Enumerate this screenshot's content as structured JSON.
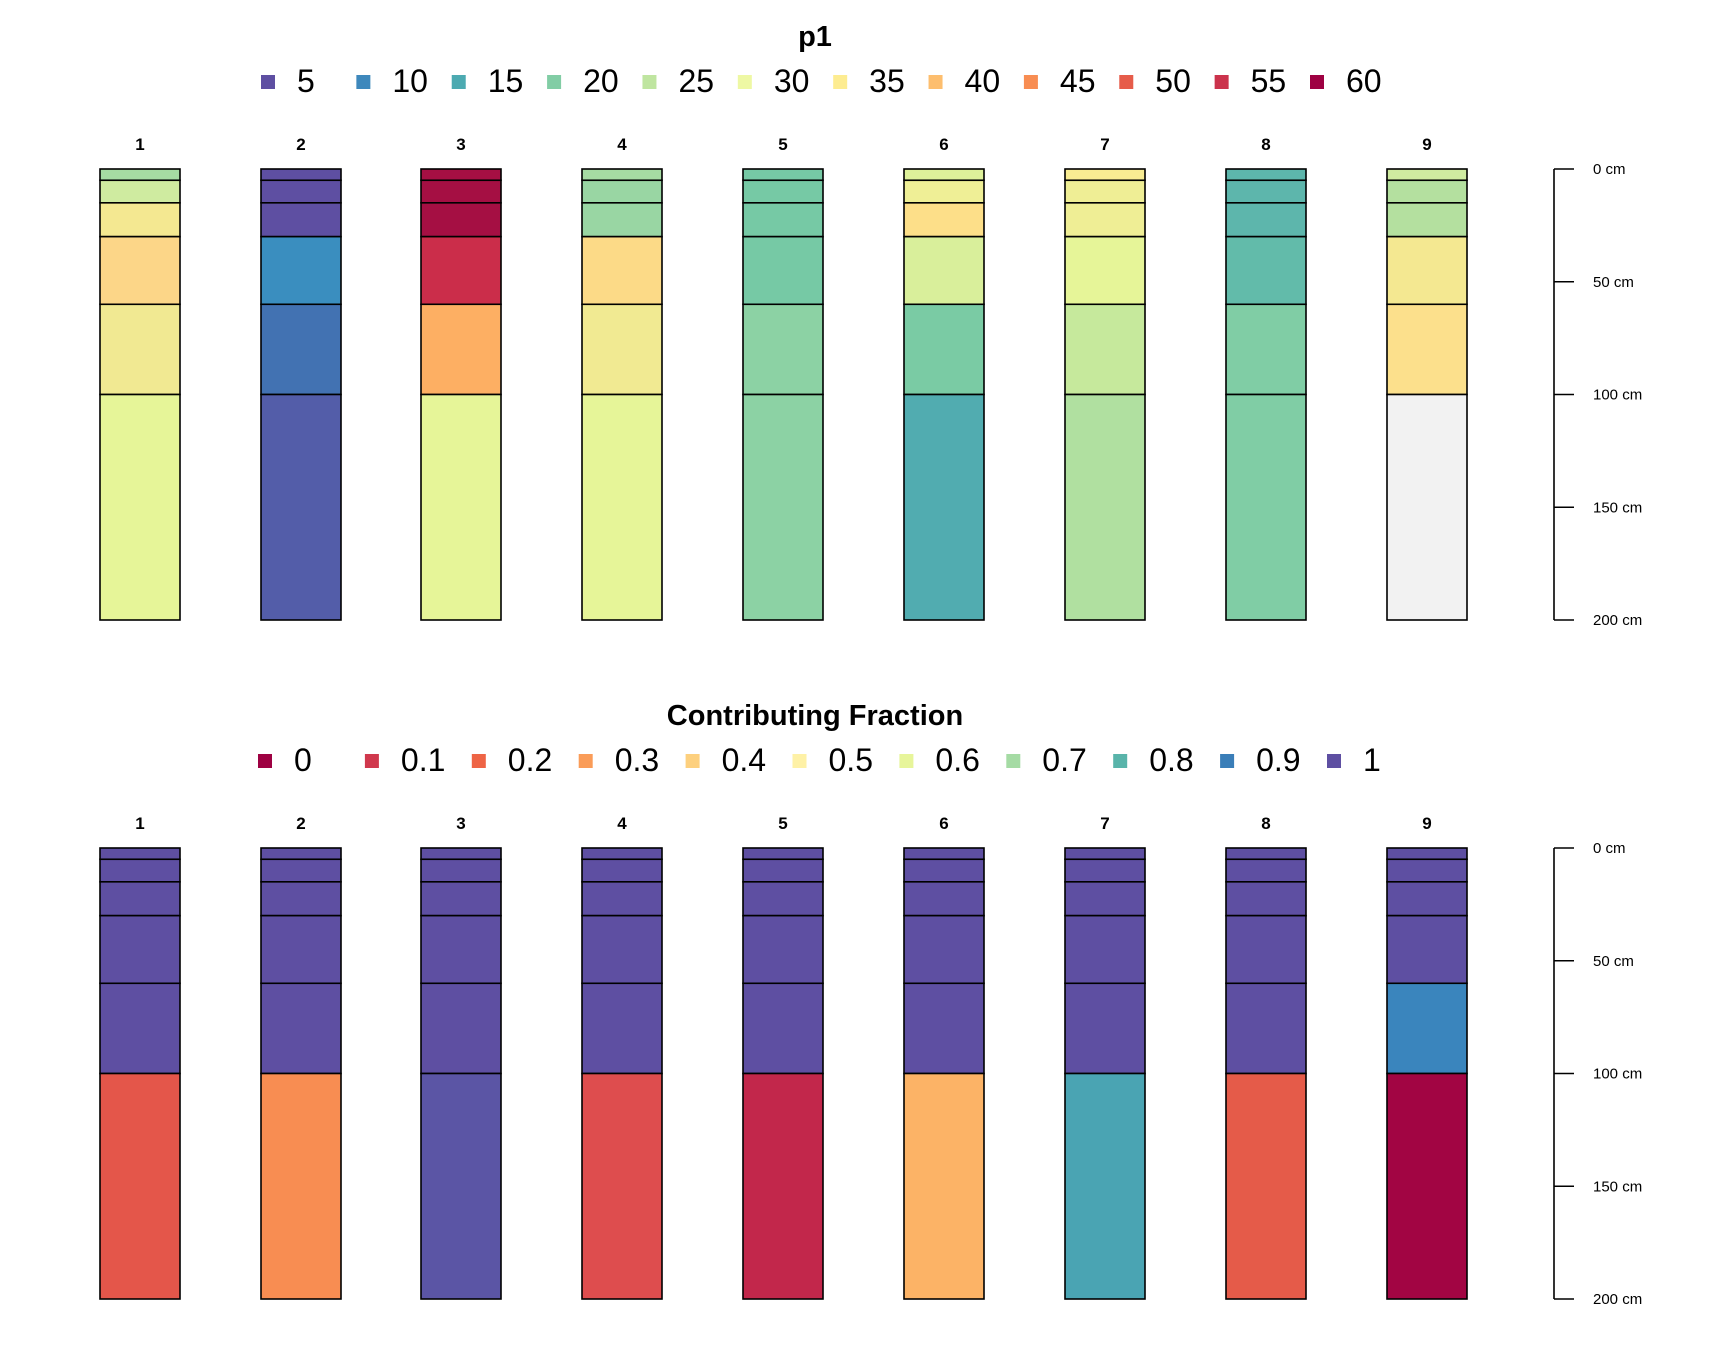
{
  "chart_data": [
    {
      "type": "bar",
      "subtype": "soil-profile-stacked-columns",
      "title": "p1",
      "legend": {
        "position": "top",
        "entries": [
          {
            "label": "5",
            "color": "#5E4FA2"
          },
          {
            "label": "10",
            "color": "#3E88BC"
          },
          {
            "label": "15",
            "color": "#4CAAB1"
          },
          {
            "label": "20",
            "color": "#82CDA5"
          },
          {
            "label": "25",
            "color": "#BFE5A0"
          },
          {
            "label": "30",
            "color": "#EEF8A4"
          },
          {
            "label": "35",
            "color": "#FDEC91"
          },
          {
            "label": "40",
            "color": "#FDBE6E"
          },
          {
            "label": "45",
            "color": "#F88D52"
          },
          {
            "label": "50",
            "color": "#E65C4A"
          },
          {
            "label": "55",
            "color": "#CB334C"
          },
          {
            "label": "60",
            "color": "#9E0142"
          }
        ]
      },
      "depth_axis": {
        "ylim": [
          0,
          200
        ],
        "ticks": [
          {
            "value": 0,
            "label": "0 cm"
          },
          {
            "value": 50,
            "label": "50 cm"
          },
          {
            "value": 100,
            "label": "100 cm"
          },
          {
            "value": 150,
            "label": "150 cm"
          },
          {
            "value": 200,
            "label": "200 cm"
          }
        ]
      },
      "profiles": [
        {
          "id": "1",
          "horizons": [
            {
              "top": 0,
              "bottom": 5,
              "color": "#A6DBA3"
            },
            {
              "top": 5,
              "bottom": 15,
              "color": "#CFEBA0"
            },
            {
              "top": 15,
              "bottom": 30,
              "color": "#F4E891"
            },
            {
              "top": 30,
              "bottom": 60,
              "color": "#FCD688"
            },
            {
              "top": 60,
              "bottom": 100,
              "color": "#F1E992"
            },
            {
              "top": 100,
              "bottom": 200,
              "color": "#E6F598"
            }
          ]
        },
        {
          "id": "2",
          "horizons": [
            {
              "top": 0,
              "bottom": 5,
              "color": "#5E4FA2"
            },
            {
              "top": 5,
              "bottom": 15,
              "color": "#5E4FA2"
            },
            {
              "top": 15,
              "bottom": 30,
              "color": "#5E4FA2"
            },
            {
              "top": 30,
              "bottom": 60,
              "color": "#3A8EBF"
            },
            {
              "top": 60,
              "bottom": 100,
              "color": "#4272B2"
            },
            {
              "top": 100,
              "bottom": 200,
              "color": "#535DA9"
            }
          ]
        },
        {
          "id": "3",
          "horizons": [
            {
              "top": 0,
              "bottom": 5,
              "color": "#A50F43"
            },
            {
              "top": 5,
              "bottom": 15,
              "color": "#A50F43"
            },
            {
              "top": 15,
              "bottom": 30,
              "color": "#A50F43"
            },
            {
              "top": 30,
              "bottom": 60,
              "color": "#CB2D4A"
            },
            {
              "top": 60,
              "bottom": 100,
              "color": "#FDAF63"
            },
            {
              "top": 100,
              "bottom": 200,
              "color": "#E6F598"
            }
          ]
        },
        {
          "id": "4",
          "horizons": [
            {
              "top": 0,
              "bottom": 5,
              "color": "#A6DBA3"
            },
            {
              "top": 5,
              "bottom": 15,
              "color": "#99D6A3"
            },
            {
              "top": 15,
              "bottom": 30,
              "color": "#99D6A3"
            },
            {
              "top": 30,
              "bottom": 60,
              "color": "#FCDA87"
            },
            {
              "top": 60,
              "bottom": 100,
              "color": "#F1EA92"
            },
            {
              "top": 100,
              "bottom": 200,
              "color": "#E6F598"
            }
          ]
        },
        {
          "id": "5",
          "horizons": [
            {
              "top": 0,
              "bottom": 5,
              "color": "#76C9A5"
            },
            {
              "top": 5,
              "bottom": 15,
              "color": "#76C9A5"
            },
            {
              "top": 15,
              "bottom": 30,
              "color": "#76C9A5"
            },
            {
              "top": 30,
              "bottom": 60,
              "color": "#76C9A5"
            },
            {
              "top": 60,
              "bottom": 100,
              "color": "#8CD2A4"
            },
            {
              "top": 100,
              "bottom": 200,
              "color": "#8CD2A4"
            }
          ]
        },
        {
          "id": "6",
          "horizons": [
            {
              "top": 0,
              "bottom": 5,
              "color": "#DEF19A"
            },
            {
              "top": 5,
              "bottom": 15,
              "color": "#EFEF96"
            },
            {
              "top": 15,
              "bottom": 30,
              "color": "#FDDF89"
            },
            {
              "top": 30,
              "bottom": 60,
              "color": "#D9EF9B"
            },
            {
              "top": 60,
              "bottom": 100,
              "color": "#7ACBA4"
            },
            {
              "top": 100,
              "bottom": 200,
              "color": "#51ACB0"
            }
          ]
        },
        {
          "id": "7",
          "horizons": [
            {
              "top": 0,
              "bottom": 5,
              "color": "#F8EC92"
            },
            {
              "top": 5,
              "bottom": 15,
              "color": "#EFEE95"
            },
            {
              "top": 15,
              "bottom": 30,
              "color": "#EFEE95"
            },
            {
              "top": 30,
              "bottom": 60,
              "color": "#E6F598"
            },
            {
              "top": 60,
              "bottom": 100,
              "color": "#C6E99C"
            },
            {
              "top": 100,
              "bottom": 200,
              "color": "#B0E0A0"
            }
          ]
        },
        {
          "id": "8",
          "horizons": [
            {
              "top": 0,
              "bottom": 5,
              "color": "#5DB6AC"
            },
            {
              "top": 5,
              "bottom": 15,
              "color": "#5DB6AC"
            },
            {
              "top": 15,
              "bottom": 30,
              "color": "#5DB6AC"
            },
            {
              "top": 30,
              "bottom": 60,
              "color": "#62BBAA"
            },
            {
              "top": 60,
              "bottom": 100,
              "color": "#80CDA5"
            },
            {
              "top": 100,
              "bottom": 200,
              "color": "#80CDA5"
            }
          ]
        },
        {
          "id": "9",
          "horizons": [
            {
              "top": 0,
              "bottom": 5,
              "color": "#CFEBA0"
            },
            {
              "top": 5,
              "bottom": 15,
              "color": "#B4E09F"
            },
            {
              "top": 15,
              "bottom": 30,
              "color": "#B4E09F"
            },
            {
              "top": 30,
              "bottom": 60,
              "color": "#F4E891"
            },
            {
              "top": 60,
              "bottom": 100,
              "color": "#FCE08C"
            },
            {
              "top": 100,
              "bottom": 200,
              "color": "#F2F2F2"
            }
          ]
        }
      ]
    },
    {
      "type": "bar",
      "subtype": "soil-profile-stacked-columns",
      "title": "Contributing Fraction",
      "legend": {
        "position": "top",
        "entries": [
          {
            "label": "0",
            "color": "#9E0142"
          },
          {
            "label": "0.1",
            "color": "#D0384D"
          },
          {
            "label": "0.2",
            "color": "#EE6445"
          },
          {
            "label": "0.3",
            "color": "#FA9C58"
          },
          {
            "label": "0.4",
            "color": "#FDD07E"
          },
          {
            "label": "0.5",
            "color": "#FEF1A6"
          },
          {
            "label": "0.6",
            "color": "#E7F59A"
          },
          {
            "label": "0.7",
            "color": "#A5DBA4"
          },
          {
            "label": "0.8",
            "color": "#59B4AA"
          },
          {
            "label": "0.9",
            "color": "#3A7EB8"
          },
          {
            "label": "1",
            "color": "#5E4FA2"
          }
        ]
      },
      "depth_axis": {
        "ylim": [
          0,
          200
        ],
        "ticks": [
          {
            "value": 0,
            "label": "0 cm"
          },
          {
            "value": 50,
            "label": "50 cm"
          },
          {
            "value": 100,
            "label": "100 cm"
          },
          {
            "value": 150,
            "label": "150 cm"
          },
          {
            "value": 200,
            "label": "200 cm"
          }
        ]
      },
      "profiles": [
        {
          "id": "1",
          "horizons": [
            {
              "top": 0,
              "bottom": 5,
              "color": "#5E4FA2"
            },
            {
              "top": 5,
              "bottom": 15,
              "color": "#5E4FA2"
            },
            {
              "top": 15,
              "bottom": 30,
              "color": "#5E4FA2"
            },
            {
              "top": 30,
              "bottom": 60,
              "color": "#5E4FA2"
            },
            {
              "top": 60,
              "bottom": 100,
              "color": "#5E4FA2"
            },
            {
              "top": 100,
              "bottom": 200,
              "color": "#E4564A"
            }
          ]
        },
        {
          "id": "2",
          "horizons": [
            {
              "top": 0,
              "bottom": 5,
              "color": "#5E4FA2"
            },
            {
              "top": 5,
              "bottom": 15,
              "color": "#5E4FA2"
            },
            {
              "top": 15,
              "bottom": 30,
              "color": "#5E4FA2"
            },
            {
              "top": 30,
              "bottom": 60,
              "color": "#5E4FA2"
            },
            {
              "top": 60,
              "bottom": 100,
              "color": "#5E4FA2"
            },
            {
              "top": 100,
              "bottom": 200,
              "color": "#F88D52"
            }
          ]
        },
        {
          "id": "3",
          "horizons": [
            {
              "top": 0,
              "bottom": 5,
              "color": "#5E4FA2"
            },
            {
              "top": 5,
              "bottom": 15,
              "color": "#5E4FA2"
            },
            {
              "top": 15,
              "bottom": 30,
              "color": "#5E4FA2"
            },
            {
              "top": 30,
              "bottom": 60,
              "color": "#5E4FA2"
            },
            {
              "top": 60,
              "bottom": 100,
              "color": "#5E4FA2"
            },
            {
              "top": 100,
              "bottom": 200,
              "color": "#5B55A5"
            }
          ]
        },
        {
          "id": "4",
          "horizons": [
            {
              "top": 0,
              "bottom": 5,
              "color": "#5E4FA2"
            },
            {
              "top": 5,
              "bottom": 15,
              "color": "#5E4FA2"
            },
            {
              "top": 15,
              "bottom": 30,
              "color": "#5E4FA2"
            },
            {
              "top": 30,
              "bottom": 60,
              "color": "#5E4FA2"
            },
            {
              "top": 60,
              "bottom": 100,
              "color": "#5E4FA2"
            },
            {
              "top": 100,
              "bottom": 200,
              "color": "#DE4D4E"
            }
          ]
        },
        {
          "id": "5",
          "horizons": [
            {
              "top": 0,
              "bottom": 5,
              "color": "#5E4FA2"
            },
            {
              "top": 5,
              "bottom": 15,
              "color": "#5E4FA2"
            },
            {
              "top": 15,
              "bottom": 30,
              "color": "#5E4FA2"
            },
            {
              "top": 30,
              "bottom": 60,
              "color": "#5E4FA2"
            },
            {
              "top": 60,
              "bottom": 100,
              "color": "#5E4FA2"
            },
            {
              "top": 100,
              "bottom": 200,
              "color": "#C2274B"
            }
          ]
        },
        {
          "id": "6",
          "horizons": [
            {
              "top": 0,
              "bottom": 5,
              "color": "#5E4FA2"
            },
            {
              "top": 5,
              "bottom": 15,
              "color": "#5E4FA2"
            },
            {
              "top": 15,
              "bottom": 30,
              "color": "#5E4FA2"
            },
            {
              "top": 30,
              "bottom": 60,
              "color": "#5E4FA2"
            },
            {
              "top": 60,
              "bottom": 100,
              "color": "#5E4FA2"
            },
            {
              "top": 100,
              "bottom": 200,
              "color": "#FCB366"
            }
          ]
        },
        {
          "id": "7",
          "horizons": [
            {
              "top": 0,
              "bottom": 5,
              "color": "#5E4FA2"
            },
            {
              "top": 5,
              "bottom": 15,
              "color": "#5E4FA2"
            },
            {
              "top": 15,
              "bottom": 30,
              "color": "#5E4FA2"
            },
            {
              "top": 30,
              "bottom": 60,
              "color": "#5E4FA2"
            },
            {
              "top": 60,
              "bottom": 100,
              "color": "#5E4FA2"
            },
            {
              "top": 100,
              "bottom": 200,
              "color": "#4AA4B3"
            }
          ]
        },
        {
          "id": "8",
          "horizons": [
            {
              "top": 0,
              "bottom": 5,
              "color": "#5E4FA2"
            },
            {
              "top": 5,
              "bottom": 15,
              "color": "#5E4FA2"
            },
            {
              "top": 15,
              "bottom": 30,
              "color": "#5E4FA2"
            },
            {
              "top": 30,
              "bottom": 60,
              "color": "#5E4FA2"
            },
            {
              "top": 60,
              "bottom": 100,
              "color": "#5E4FA2"
            },
            {
              "top": 100,
              "bottom": 200,
              "color": "#E55B49"
            }
          ]
        },
        {
          "id": "9",
          "horizons": [
            {
              "top": 0,
              "bottom": 5,
              "color": "#5E4FA2"
            },
            {
              "top": 5,
              "bottom": 15,
              "color": "#5E4FA2"
            },
            {
              "top": 15,
              "bottom": 30,
              "color": "#5E4FA2"
            },
            {
              "top": 30,
              "bottom": 60,
              "color": "#5E4FA2"
            },
            {
              "top": 60,
              "bottom": 100,
              "color": "#3A85BD"
            },
            {
              "top": 100,
              "bottom": 200,
              "color": "#A20543"
            }
          ]
        }
      ]
    }
  ]
}
